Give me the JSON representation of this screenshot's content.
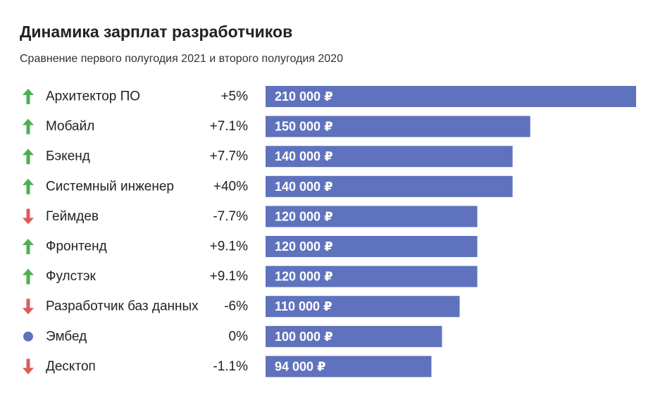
{
  "title": "Динамика зарплат разработчиков",
  "subtitle": "Сравнение первого полугодия 2021 и второго полугодия 2020",
  "colors": {
    "bar": "#5f72bd",
    "up": "#4caf50",
    "down": "#e05a5a",
    "neutral": "#5f72bd"
  },
  "chart_data": {
    "type": "bar",
    "orientation": "horizontal",
    "xlim": [
      0,
      210000
    ],
    "categories": [
      "Архитектор ПО",
      "Мобайл",
      "Бэкенд",
      "Системный инженер",
      "Геймдев",
      "Фронтенд",
      "Фулстэк",
      "Разработчик баз данных",
      "Эмбед",
      "Десктоп"
    ],
    "values": [
      210000,
      150000,
      140000,
      140000,
      120000,
      120000,
      120000,
      110000,
      100000,
      94000
    ],
    "value_labels": [
      "210 000 ₽",
      "150 000 ₽",
      "140 000 ₽",
      "140 000 ₽",
      "120 000 ₽",
      "120 000 ₽",
      "120 000 ₽",
      "110 000 ₽",
      "100 000 ₽",
      "94 000 ₽"
    ],
    "changes": [
      "+5%",
      "+7.1%",
      "+7.7%",
      "+40%",
      "-7.7%",
      "+9.1%",
      "+9.1%",
      "-6%",
      "0%",
      "-1.1%"
    ],
    "trend_icons": [
      "arrow-up-icon",
      "arrow-up-icon",
      "arrow-up-icon",
      "arrow-up-icon",
      "arrow-down-icon",
      "arrow-up-icon",
      "arrow-up-icon",
      "arrow-down-icon",
      "dot-icon",
      "arrow-down-icon"
    ],
    "grid": false,
    "legend": "none"
  }
}
